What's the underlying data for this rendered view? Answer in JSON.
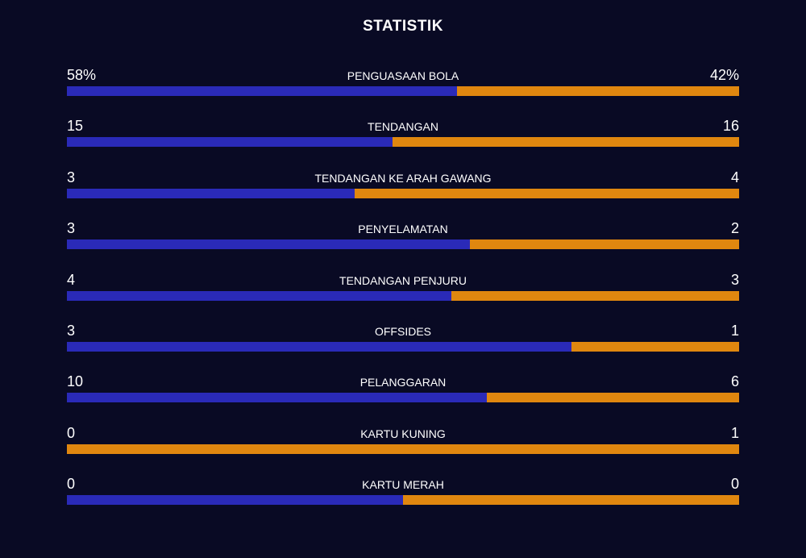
{
  "header": {
    "title": "STATISTIK"
  },
  "colors": {
    "home": "#2a2ab8",
    "away": "#e0870f"
  },
  "stats": [
    {
      "label": "PENGUASAAN BOLA",
      "home": 58,
      "away": 42,
      "home_label": "58%",
      "away_label": "42%"
    },
    {
      "label": "TENDANGAN",
      "home": 15,
      "away": 16
    },
    {
      "label": "TENDANGAN KE ARAH GAWANG",
      "home": 3,
      "away": 4
    },
    {
      "label": "PENYELAMATAN",
      "home": 3,
      "away": 2
    },
    {
      "label": "TENDANGAN PENJURU",
      "home": 4,
      "away": 3
    },
    {
      "label": "OFFSIDES",
      "home": 3,
      "away": 1
    },
    {
      "label": "PELANGGARAN",
      "home": 10,
      "away": 6
    },
    {
      "label": "KARTU KUNING",
      "home": 0,
      "away": 1
    },
    {
      "label": "KARTU MERAH",
      "home": 0,
      "away": 0
    }
  ]
}
